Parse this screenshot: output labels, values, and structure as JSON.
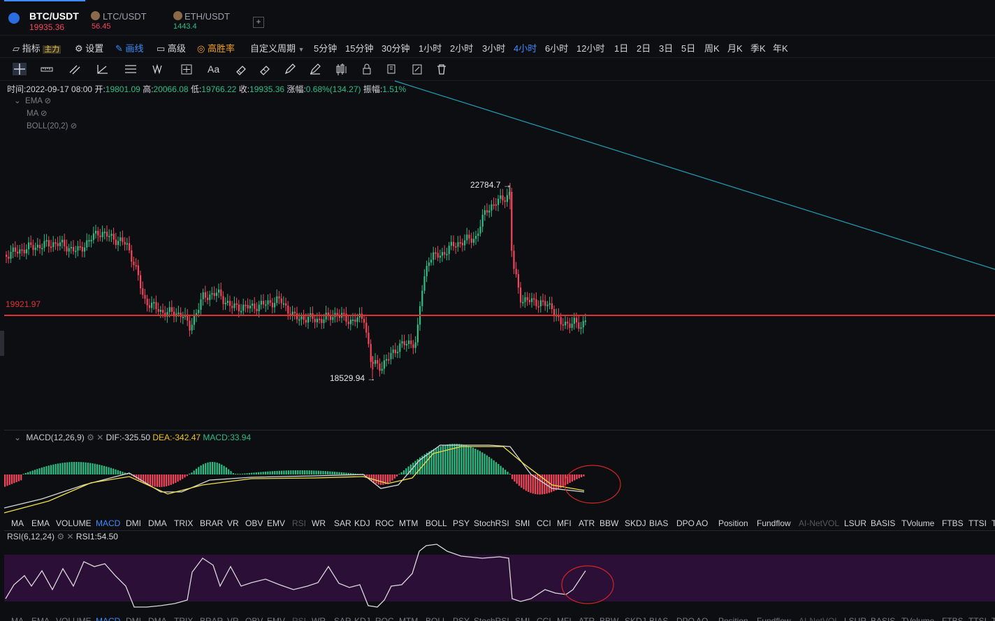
{
  "symbols": [
    {
      "name": "BTC/USDT",
      "price": "19935.36",
      "price_color": "#f6465d",
      "active": true
    },
    {
      "name": "LTC/USDT",
      "price": "56.45",
      "price_color": "#f6465d",
      "active": false
    },
    {
      "name": "ETH/USDT",
      "price": "1443.4",
      "price_color": "#2ebd85",
      "active": false
    }
  ],
  "add_tab_label": "+",
  "toolbar": {
    "indicator_label": "指标",
    "indicator_badge": "主力",
    "settings_label": "设置",
    "draw_label": "画线",
    "advanced_label": "高级",
    "winrate_label": "高胜率",
    "custom_period_label": "自定义周期",
    "periods": [
      "5分钟",
      "15分钟",
      "30分钟",
      "1小时",
      "2小时",
      "3小时",
      "4小时",
      "6小时",
      "12小时",
      "1日",
      "2日",
      "3日",
      "5日",
      "周K",
      "月K",
      "季K",
      "年K"
    ],
    "active_period": "4小时"
  },
  "drawing_tools": [
    "crosshair-icon",
    "ruler-icon",
    "parallel-lines-icon",
    "angle-icon",
    "fib-lines-icon",
    "wave-icon",
    "measure-icon",
    "text-icon",
    "eraser-icon",
    "magnet-icon",
    "pen-icon",
    "pencil-icon",
    "candles-icon",
    "lock-icon",
    "copy-icon",
    "edit-icon",
    "trash-icon"
  ],
  "text_tool_label": "Aa",
  "candle_info": {
    "time_label": "时间:",
    "time": "2022-09-17 08:00",
    "open_label": "开:",
    "open": "19801.09",
    "high_label": "高:",
    "high": "20066.08",
    "low_label": "低:",
    "low": "19766.22",
    "close_label": "收:",
    "close": "19935.36",
    "change_label": "涨幅:",
    "change": "0.68%(134.27)",
    "amp_label": "振幅:",
    "amp": "1.51%"
  },
  "overlays": [
    "EMA",
    "MA",
    "BOLL(20,2)"
  ],
  "price_line": {
    "label": "19921.97",
    "color": "#e03131"
  },
  "high_marker": "22784.7 →",
  "low_marker": "18529.94 →",
  "macd": {
    "title": "MACD(12,26,9)",
    "dif": "DIF:-325.50",
    "dea": "DEA:-342.47",
    "macd": "MACD:33.94"
  },
  "indicator_tabs": [
    "MA",
    "EMA",
    "VOLUME",
    "MACD",
    "DMI",
    "DMA",
    "TRIX",
    "BRAR",
    "VR",
    "OBV",
    "EMV",
    "RSI",
    "WR",
    "SAR",
    "KDJ",
    "ROC",
    "MTM",
    "BOLL",
    "PSY",
    "StochRSI",
    "SMI",
    "CCI",
    "MFI",
    "ATR",
    "BBW",
    "SKDJ",
    "BIAS",
    "DPO",
    "AO",
    "Position",
    "Fundflow",
    "AI-NetVOL",
    "LSUR",
    "BASIS",
    "TVolume",
    "FTBS",
    "TTSI",
    "T"
  ],
  "indicator_tabs_active": "MACD",
  "indicator_tabs_disabled": [
    "RSI",
    "AI-NetVOL"
  ],
  "rsi": {
    "title": "RSI(6,12,24)",
    "value": "RSI1:54.50"
  },
  "colors": {
    "up": "#2ebd85",
    "down": "#f6465d",
    "accent": "#3d8bfd",
    "trendline": "#21a0b8",
    "dea": "#f0e04a",
    "dif": "#d8d8d8",
    "rsi_band": "#2c0f36"
  }
}
